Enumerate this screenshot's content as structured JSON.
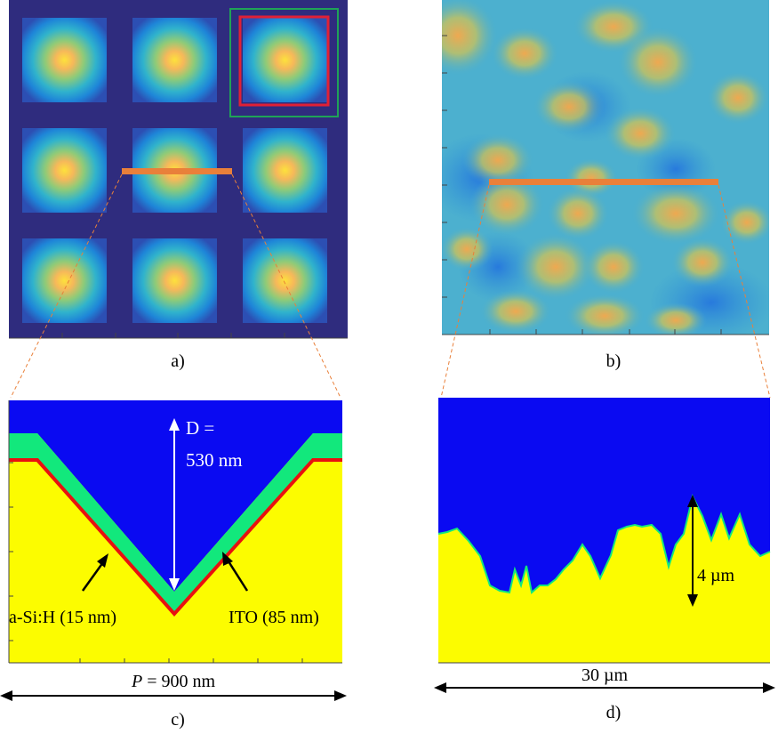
{
  "panel_labels": {
    "a": "a)",
    "b": "b)",
    "c": "c)",
    "d": "d)"
  },
  "panel_c": {
    "depth_label_line1": "D =",
    "depth_label_line2": "530 nm",
    "asi_label": "a-Si:H (15 nm)",
    "ito_label": "ITO (85 nm)",
    "period_symbol": "P",
    "period_value": " = 900 nm"
  },
  "panel_d": {
    "height_label": "4 µm",
    "width_label": "30 µm"
  },
  "colors": {
    "background_blue": "#2F2C7E",
    "air_blue": "#0A0AF2",
    "substrate_yellow": "#FCFC00",
    "ito_green": "#12E87C",
    "asi_red": "#E81010",
    "highlight_orange": "#E9803A",
    "box_red": "#E02036",
    "box_green": "#1FA357"
  }
}
